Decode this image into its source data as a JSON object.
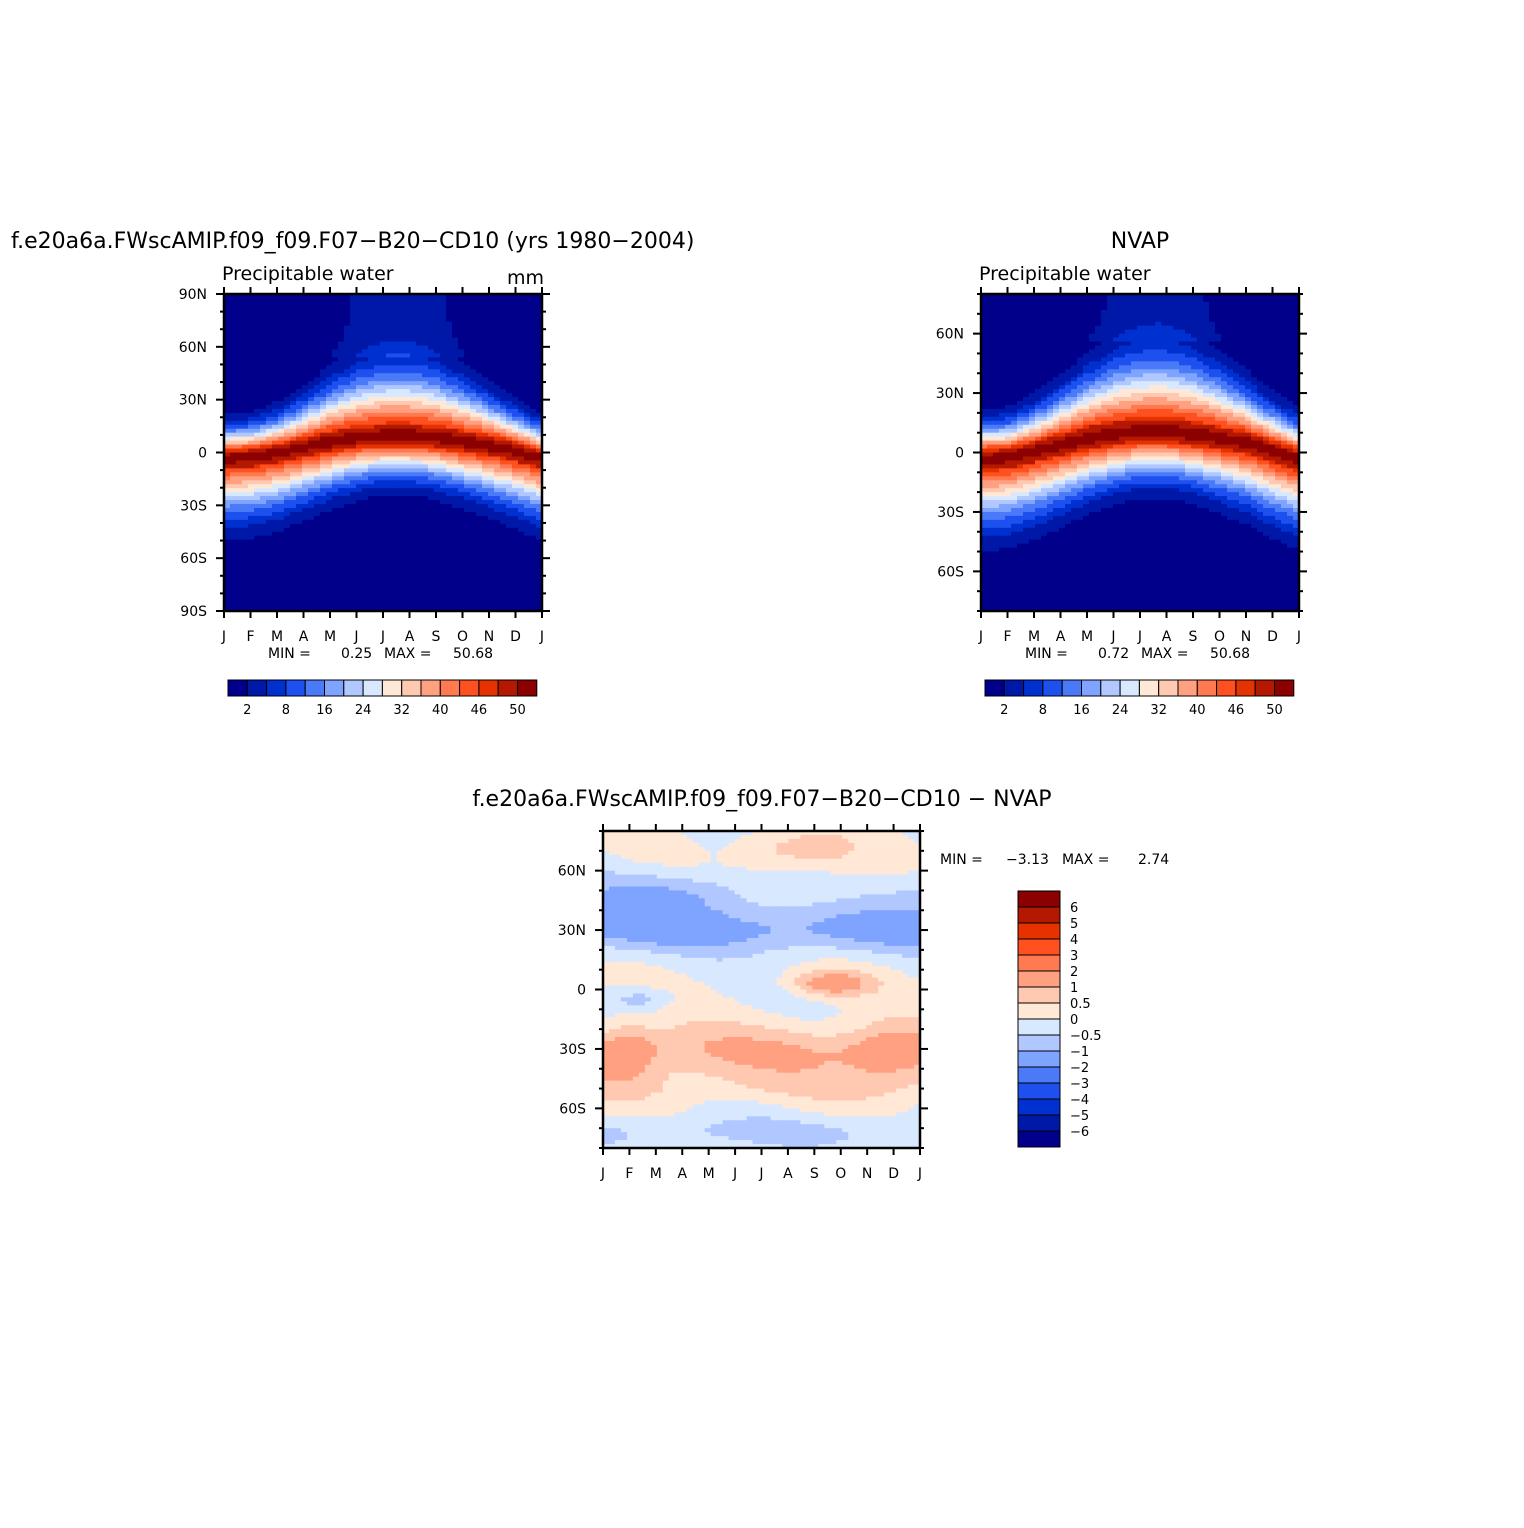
{
  "chart_data": [
    {
      "type": "heatmap",
      "title": "f.e20a6a.FWscAMIP.f09_f09.F07−B20−CD10 (yrs 1980−2004)",
      "subtitle": "Precipitable water",
      "units": "mm",
      "x": [
        "J",
        "F",
        "M",
        "A",
        "M",
        "J",
        "J",
        "A",
        "S",
        "O",
        "N",
        "D",
        "J"
      ],
      "y_ticks": [
        "90N",
        "60N",
        "30N",
        "0",
        "30S",
        "60S",
        "90S"
      ],
      "ylim": [
        -90,
        90
      ],
      "stats": {
        "min_label": "MIN =",
        "min": "0.25",
        "max_label": "MAX =",
        "max": "50.68"
      },
      "colorbar": {
        "labels": [
          "2",
          "8",
          "16",
          "24",
          "32",
          "40",
          "46",
          "50"
        ]
      },
      "field": {
        "equator_peak_lat": [
          -3,
          -2,
          0,
          3,
          6,
          8,
          9,
          9,
          8,
          6,
          4,
          1,
          -3
        ],
        "max_value": 50.68,
        "min_value": 0.25
      }
    },
    {
      "type": "heatmap",
      "title": "NVAP",
      "subtitle": "Precipitable water",
      "x": [
        "J",
        "F",
        "M",
        "A",
        "M",
        "J",
        "J",
        "A",
        "S",
        "O",
        "N",
        "D",
        "J"
      ],
      "y_ticks": [
        "60N",
        "30N",
        "0",
        "30S",
        "60S"
      ],
      "ylim": [
        -80,
        80
      ],
      "stats": {
        "min_label": "MIN =",
        "min": "0.72",
        "max_label": "MAX =",
        "max": "50.68"
      },
      "colorbar": {
        "labels": [
          "2",
          "8",
          "16",
          "24",
          "32",
          "40",
          "46",
          "50"
        ]
      },
      "field": {
        "equator_peak_lat": [
          -3,
          -2,
          1,
          4,
          7,
          9,
          10,
          10,
          9,
          7,
          5,
          1,
          -3
        ],
        "max_value": 50.68,
        "min_value": 0.72
      }
    },
    {
      "type": "heatmap",
      "title": "f.e20a6a.FWscAMIP.f09_f09.F07−B20−CD10 − NVAP",
      "x": [
        "J",
        "F",
        "M",
        "A",
        "M",
        "J",
        "J",
        "A",
        "S",
        "O",
        "N",
        "D",
        "J"
      ],
      "y_ticks": [
        "60N",
        "30N",
        "0",
        "30S",
        "60S"
      ],
      "ylim": [
        -80,
        80
      ],
      "stats": {
        "min_label": "MIN =",
        "min": "−3.13",
        "max_label": "MAX =",
        "max": "2.74"
      },
      "colorbar": {
        "labels": [
          "6",
          "5",
          "4",
          "3",
          "2",
          "1",
          "0.5",
          "0",
          "−0.5",
          "−1",
          "−2",
          "−3",
          "−4",
          "−5",
          "−6"
        ]
      }
    }
  ],
  "colors": {
    "seq_scale": [
      "#00008b",
      "#0018a8",
      "#0030d0",
      "#1e50f0",
      "#4a7af8",
      "#7ea4ff",
      "#b0c8ff",
      "#d8e8ff",
      "#ffe8d6",
      "#ffc8b0",
      "#ffa080",
      "#ff7a50",
      "#ff5020",
      "#e63200",
      "#b41800",
      "#8b0000"
    ],
    "diff_scale": [
      "#8b0000",
      "#b41800",
      "#e63200",
      "#ff5020",
      "#ff7a50",
      "#ffa080",
      "#ffc8b0",
      "#ffe8d6",
      "#d8e8ff",
      "#b0c8ff",
      "#7ea4ff",
      "#4a7af8",
      "#1e50f0",
      "#0030d0",
      "#0018a8",
      "#00008b"
    ]
  }
}
